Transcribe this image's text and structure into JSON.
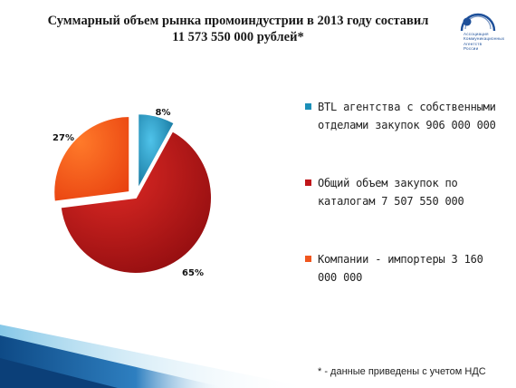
{
  "header": {
    "title_line1": "Суммарный объем рынка промоиндустрии  в 2013 году составил",
    "title_line2": "11 573 550 000 рублей*"
  },
  "logo": {
    "text_lines": [
      "Ассоциация",
      "Коммуникационных",
      "Агентств",
      "России"
    ]
  },
  "chart_data": {
    "type": "pie",
    "slices": [
      {
        "label": "BTL агентства с собственными отделами закупок 906 000 000",
        "value": 8,
        "data_label": "8%",
        "color": "#1b8fb8"
      },
      {
        "label": "Общий объем закупок по каталогам 7 507 550 000",
        "value": 65,
        "data_label": "65%",
        "color": "#c0161a"
      },
      {
        "label": "Компании - импортеры 3 160 000 000",
        "value": 27,
        "data_label": "27%",
        "color": "#f0561e"
      }
    ],
    "legend_position": "right"
  },
  "footnote": "* - данные приведены с учетом НДС"
}
